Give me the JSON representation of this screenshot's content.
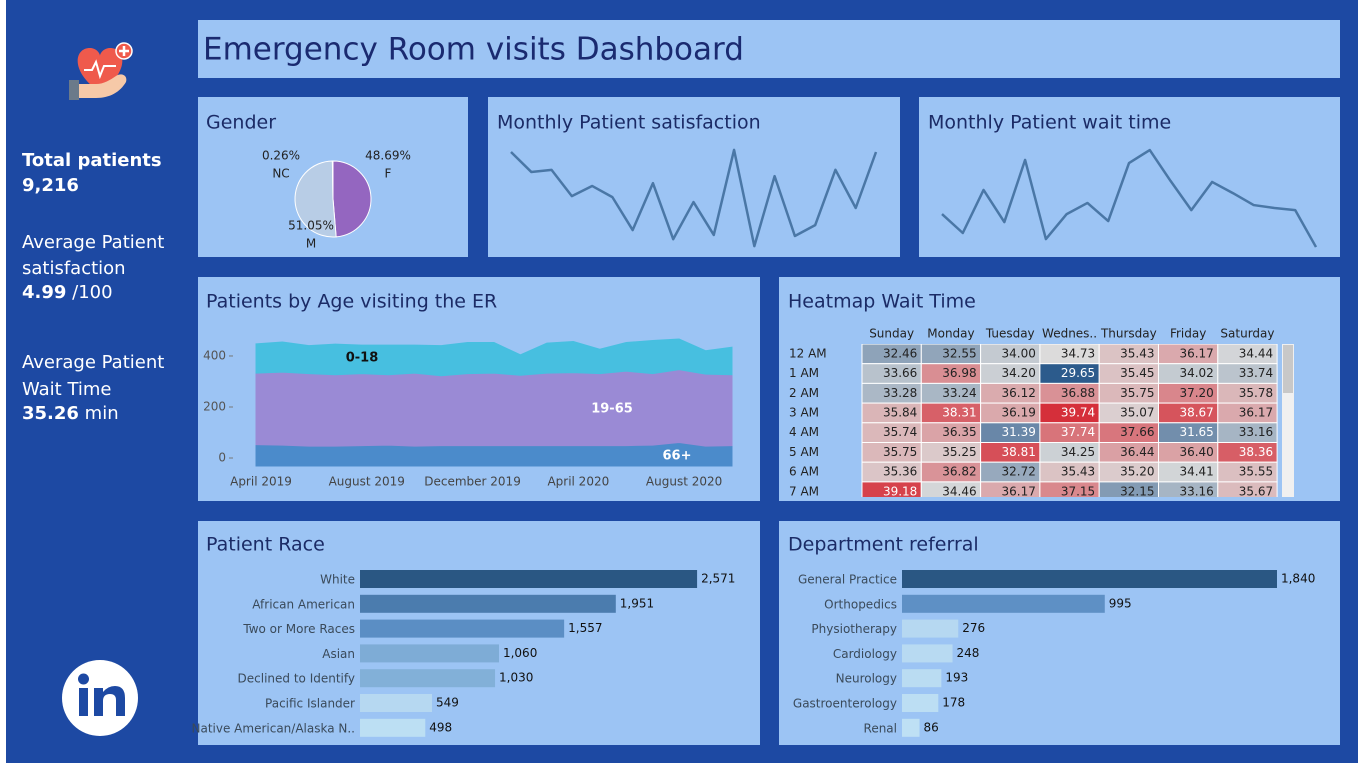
{
  "title": "Emergency Room visits Dashboard",
  "kpis": [
    {
      "label": [
        "Total patients"
      ],
      "value": "9,216"
    },
    {
      "label": [
        "Average Patient",
        "satisfaction"
      ],
      "value": "4.99",
      "unit": "/100"
    },
    {
      "label": [
        "Average Patient",
        "Wait Time"
      ],
      "value": "35.26",
      "unit": "min"
    }
  ],
  "chart_data": [
    {
      "type": "pie",
      "title": "Gender",
      "categories": [
        "F",
        "M",
        "NC"
      ],
      "values": [
        48.69,
        51.05,
        0.26
      ],
      "value_labels": [
        "48.69%",
        "51.05%",
        "0.26%"
      ],
      "colors": [
        "#9466c0",
        "#b8cde6",
        "#cfcfcf"
      ]
    },
    {
      "type": "line",
      "title": "Monthly Patient satisfaction",
      "color": "#4a77a6",
      "ylim": [
        3.5,
        6.5
      ],
      "values": [
        6.3,
        5.73,
        5.79,
        5.04,
        5.33,
        5.01,
        4.07,
        5.41,
        3.81,
        4.87,
        3.93,
        6.36,
        3.61,
        5.61,
        3.9,
        4.21,
        5.79,
        4.7,
        6.3
      ]
    },
    {
      "type": "line",
      "title": "Monthly Patient wait time",
      "color": "#4a77a6",
      "ylim": [
        33,
        38
      ],
      "values": [
        34.71,
        33.81,
        35.86,
        34.33,
        37.29,
        33.52,
        34.71,
        35.24,
        34.38,
        37.14,
        37.76,
        36.29,
        34.9,
        36.24,
        35.71,
        35.14,
        35.0,
        34.9,
        33.14
      ]
    },
    {
      "type": "area",
      "title": "Patients by Age visiting the ER",
      "stacked": true,
      "categories": [
        "April 2019",
        null,
        null,
        null,
        "August 2019",
        null,
        null,
        null,
        "December 2019",
        null,
        null,
        null,
        "April 2020",
        null,
        null,
        null,
        "August 2020",
        null,
        null
      ],
      "ylim": [
        0,
        494
      ],
      "yticks": [
        0,
        200,
        400
      ],
      "series": [
        {
          "name": "66+",
          "color": "#4b8bcb",
          "values": [
            84,
            82,
            78,
            78,
            80,
            82,
            78,
            80,
            80,
            80,
            80,
            80,
            80,
            80,
            80,
            82,
            92,
            78,
            80
          ]
        },
        {
          "name": "19-65",
          "color": "#9a8ad5",
          "values": [
            280,
            286,
            284,
            280,
            282,
            276,
            286,
            274,
            282,
            284,
            276,
            284,
            286,
            282,
            292,
            280,
            286,
            282,
            278
          ]
        },
        {
          "name": "0-18",
          "color": "#47bfe0",
          "values": [
            115,
            118,
            110,
            120,
            112,
            116,
            110,
            118,
            122,
            120,
            80,
            118,
            122,
            96,
            112,
            130,
            120,
            92,
            108
          ]
        }
      ]
    },
    {
      "type": "heatmap",
      "title": "Heatmap Wait Time",
      "x_categories": [
        "Sunday",
        "Monday",
        "Tuesday",
        "Wednes..",
        "Thursday",
        "Friday",
        "Saturday"
      ],
      "y_categories": [
        "12 AM",
        "1 AM",
        "2 AM",
        "3 AM",
        "4 AM",
        "5 AM",
        "6 AM",
        "7 AM"
      ],
      "colors": [
        "#2c5b8c",
        "#dcdcdc",
        "#d52f3a"
      ],
      "values": [
        [
          32.46,
          32.55,
          34.0,
          34.73,
          35.43,
          36.17,
          34.44
        ],
        [
          33.66,
          36.98,
          34.2,
          29.65,
          35.45,
          34.02,
          33.74
        ],
        [
          33.28,
          33.24,
          36.12,
          36.88,
          35.75,
          37.2,
          35.78
        ],
        [
          35.84,
          38.31,
          36.19,
          39.74,
          35.07,
          38.67,
          36.17
        ],
        [
          35.74,
          36.35,
          31.39,
          37.74,
          37.66,
          31.65,
          33.16
        ],
        [
          35.75,
          35.25,
          38.81,
          34.25,
          36.44,
          36.4,
          38.36
        ],
        [
          35.36,
          36.82,
          32.72,
          35.43,
          35.2,
          34.41,
          35.55
        ],
        [
          39.18,
          34.46,
          36.17,
          37.15,
          32.15,
          33.16,
          35.67
        ]
      ],
      "value_labels": [
        [
          "32.46",
          "32.55",
          "34.00",
          "34.73",
          "35.43",
          "36.17",
          "34.44"
        ],
        [
          "33.66",
          "36.98",
          "34.20",
          "29.65",
          "35.45",
          "34.02",
          "33.74"
        ],
        [
          "33.28",
          "33.24",
          "36.12",
          "36.88",
          "35.75",
          "37.20",
          "35.78"
        ],
        [
          "35.84",
          "38.31",
          "36.19",
          "39.74",
          "35.07",
          "38.67",
          "36.17"
        ],
        [
          "35.74",
          "36.35",
          "31.39",
          "37.74",
          "37.66",
          "31.65",
          "33.16"
        ],
        [
          "35.75",
          "35.25",
          "38.81",
          "34.25",
          "36.44",
          "36.40",
          "38.36"
        ],
        [
          "35.36",
          "36.82",
          "32.72",
          "35.43",
          "35.20",
          "34.41",
          "35.55"
        ],
        [
          "39.18",
          "34.46",
          "36.17",
          "37.15",
          "32.15",
          "33.16",
          "35.67"
        ]
      ]
    },
    {
      "type": "hbar",
      "title": "Patient Race",
      "xlim": [
        0,
        2700
      ],
      "categories": [
        "White",
        "African American",
        "Two or More Races",
        "Asian",
        "Declined to Identify",
        "Pacific Islander",
        "Native American/Alaska N.."
      ],
      "values": [
        2571,
        1951,
        1557,
        1060,
        1030,
        549,
        498
      ],
      "value_labels": [
        "2,571",
        "1,951",
        "1,557",
        "1,060",
        "1,030",
        "549",
        "498"
      ],
      "colors": [
        "#2a5783",
        "#4b7cae",
        "#5b8ec4",
        "#7eacd6",
        "#82b0d8",
        "#b6d8f1",
        "#bcdff3"
      ]
    },
    {
      "type": "hbar",
      "title": "Department referral",
      "xlim": [
        0,
        2000
      ],
      "categories": [
        "General Practice",
        "Orthopedics",
        "Physiotherapy",
        "Cardiology",
        "Neurology",
        "Gastroenterology",
        "Renal"
      ],
      "values": [
        1840,
        995,
        276,
        248,
        193,
        178,
        86
      ],
      "value_labels": [
        "1,840",
        "995",
        "276",
        "248",
        "193",
        "178",
        "86"
      ],
      "colors": [
        "#2a5783",
        "#5e90c5",
        "#b6d8f1",
        "#b8daf2",
        "#badcf2",
        "#bcdef3",
        "#bee0f4"
      ]
    }
  ]
}
